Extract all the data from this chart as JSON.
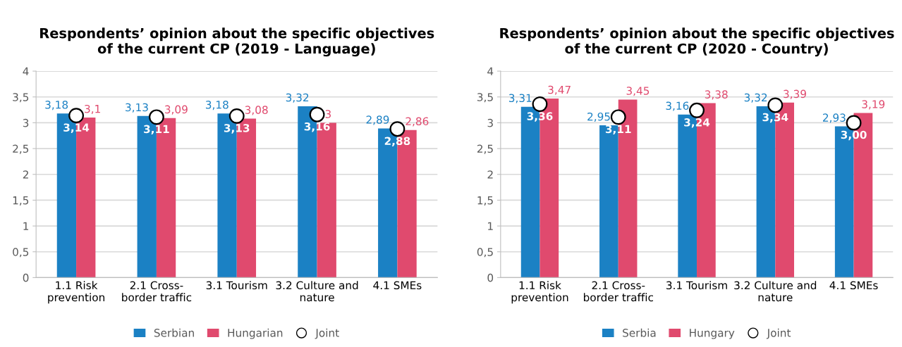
{
  "chart_data": [
    {
      "type": "bar",
      "title": "Respondents’ opinion about the specific objectives\nof the current CP (2019 - Language)",
      "categories": [
        "1.1 Risk\nprevention",
        "2.1 Cross-\nborder traffic",
        "3.1 Tourism",
        "3.2 Culture and\nnature",
        "4.1 SMEs"
      ],
      "series": [
        {
          "name": "Serbian",
          "color": "#1b81c4",
          "values": [
            3.18,
            3.13,
            3.18,
            3.32,
            2.89
          ],
          "value_labels": [
            "3,18",
            "3,13",
            "3,18",
            "3,32",
            "2,89"
          ]
        },
        {
          "name": "Hungarian",
          "color": "#e04a6e",
          "values": [
            3.1,
            3.09,
            3.08,
            3.0,
            2.86
          ],
          "value_labels": [
            "3,1",
            "3,09",
            "3,08",
            "3",
            "2,86"
          ]
        },
        {
          "name": "Joint",
          "type": "scatter",
          "color": "#ffffff",
          "marker": "circle",
          "x": [
            "1.1 Risk\nprevention",
            "2.1 Cross-\nborder traffic",
            "3.1 Tourism",
            "3.2 Culture and\nnature",
            "4.1 SMEs"
          ],
          "values": [
            3.14,
            3.11,
            3.13,
            3.16,
            2.88
          ],
          "value_labels": [
            "3,14",
            "3,11",
            "3,13",
            "3,16",
            "2,88"
          ]
        }
      ],
      "ylim": [
        0,
        4
      ],
      "yticks": [
        0,
        {
          "value": 0.5,
          "label": "0,5"
        },
        1,
        {
          "value": 1.5,
          "label": "1,5"
        },
        2,
        {
          "value": 2.5,
          "label": "2,5"
        },
        3,
        {
          "value": 3.5,
          "label": "3,5"
        },
        4
      ],
      "grid": "y",
      "legend": "bottom"
    },
    {
      "type": "bar",
      "title": "Respondents’ opinion about the specific objectives\nof the current CP (2020 - Country)",
      "categories": [
        "1.1 Risk\nprevention",
        "2.1 Cross-\nborder traffic",
        "3.1 Tourism",
        "3.2 Culture and\nnature",
        "4.1 SMEs"
      ],
      "series": [
        {
          "name": "Serbia",
          "color": "#1b81c4",
          "values": [
            3.31,
            2.95,
            3.16,
            3.32,
            2.93
          ],
          "value_labels": [
            "3,31",
            "2,95",
            "3,16",
            "3,32",
            "2,93"
          ]
        },
        {
          "name": "Hungary",
          "color": "#e04a6e",
          "values": [
            3.47,
            3.45,
            3.38,
            3.39,
            3.19
          ],
          "value_labels": [
            "3,47",
            "3,45",
            "3,38",
            "3,39",
            "3,19"
          ]
        },
        {
          "name": "Joint",
          "type": "scatter",
          "color": "#ffffff",
          "marker": "circle",
          "x": [
            "1.1 Risk\nprevention",
            "2.1 Cross-\nborder traffic",
            "3.1 Tourism",
            "3.2 Culture and\nnature",
            "4.1 SMEs"
          ],
          "values": [
            3.36,
            3.11,
            3.24,
            3.34,
            3.0
          ],
          "value_labels": [
            "3,36",
            "3,11",
            "3,24",
            "3,34",
            "3,00"
          ]
        }
      ],
      "ylim": [
        0,
        4
      ],
      "yticks": [
        0,
        {
          "value": 0.5,
          "label": "0,5"
        },
        1,
        {
          "value": 1.5,
          "label": "1,5"
        },
        2,
        {
          "value": 2.5,
          "label": "2,5"
        },
        3,
        {
          "value": 3.5,
          "label": "3,5"
        },
        4
      ],
      "grid": "y",
      "legend": "bottom"
    }
  ]
}
